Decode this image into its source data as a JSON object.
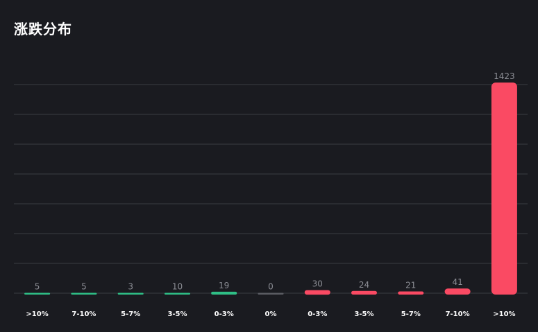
{
  "chart_data": {
    "type": "bar",
    "title": "涨跌分布",
    "categories": [
      ">10%",
      "7-10%",
      "5-7%",
      "3-5%",
      "0-3%",
      "0%",
      "0-3%",
      "3-5%",
      "5-7%",
      "7-10%",
      ">10%"
    ],
    "values": [
      5,
      5,
      3,
      10,
      19,
      0,
      30,
      24,
      21,
      41,
      1423
    ],
    "bar_colors": [
      "#2fbf86",
      "#2fbf86",
      "#2fbf86",
      "#2fbf86",
      "#2fbf86",
      "#5a5c63",
      "#fa4a63",
      "#fa4a63",
      "#fa4a63",
      "#fa4a63",
      "#fa4a63"
    ],
    "ylim": [
      0,
      1400
    ],
    "grid": true,
    "colors": {
      "background": "#1a1b20",
      "grid": "#3a3c42",
      "fall": "#2fbf86",
      "flat": "#5a5c63",
      "rise": "#fa4a63"
    }
  }
}
